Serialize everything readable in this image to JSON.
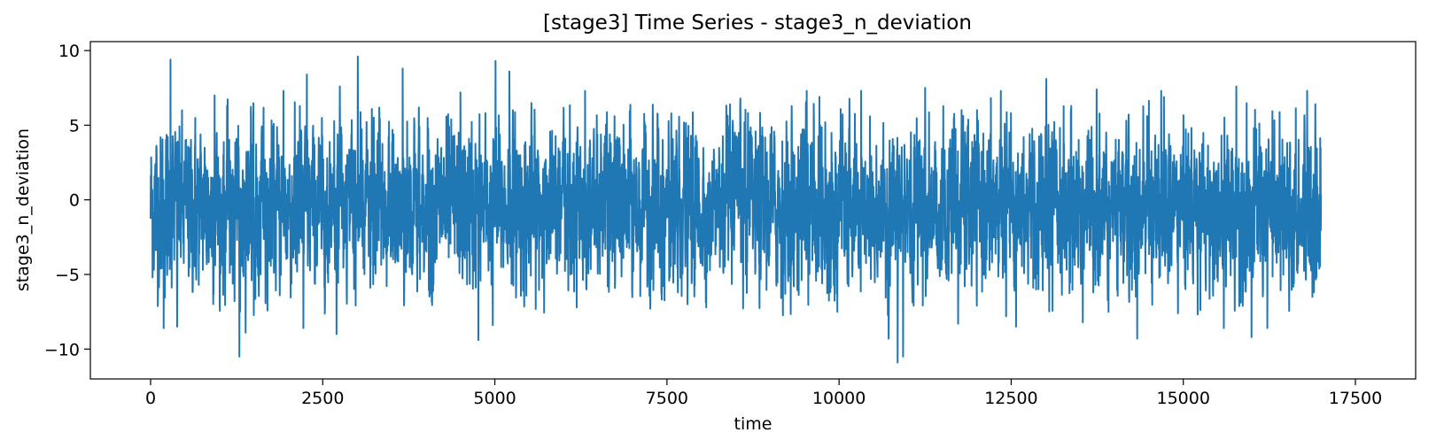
{
  "chart_data": {
    "type": "line",
    "title": "[stage3] Time Series - stage3_n_deviation",
    "xlabel": "time",
    "ylabel": "stage3_n_deviation",
    "xlim": [
      -875,
      18375
    ],
    "ylim": [
      -12,
      10.6
    ],
    "x_ticks": [
      0,
      2500,
      5000,
      7500,
      10000,
      12500,
      15000,
      17500
    ],
    "x_tick_labels": [
      "0",
      "2500",
      "5000",
      "7500",
      "10000",
      "12500",
      "15000",
      "17500"
    ],
    "y_ticks": [
      -10,
      -5,
      0,
      5,
      10
    ],
    "y_tick_labels": [
      "−10",
      "−5",
      "0",
      "5",
      "10"
    ],
    "grid": false,
    "legend": "none",
    "series": [
      {
        "color": "#1f77b4",
        "x_start": 0,
        "x_end": 17000,
        "n_points": 17000,
        "typical_range": [
          -5.0,
          4.0
        ],
        "peaks": [
          {
            "x": 290,
            "y": 9.4
          },
          {
            "x": 3010,
            "y": 9.6
          },
          {
            "x": 3660,
            "y": 8.8
          },
          {
            "x": 5010,
            "y": 9.3
          },
          {
            "x": 5210,
            "y": 8.6
          },
          {
            "x": 2270,
            "y": 8.4
          },
          {
            "x": 2750,
            "y": 7.6
          },
          {
            "x": 1930,
            "y": 7.3
          },
          {
            "x": 13010,
            "y": 8.1
          },
          {
            "x": 15770,
            "y": 7.6
          },
          {
            "x": 16800,
            "y": 7.3
          },
          {
            "x": 13740,
            "y": 7.4
          },
          {
            "x": 9530,
            "y": 7.3
          },
          {
            "x": 10320,
            "y": 7.3
          },
          {
            "x": 6310,
            "y": 7.3
          },
          {
            "x": 11250,
            "y": 7.5
          },
          {
            "x": 12350,
            "y": 7.3
          },
          {
            "x": 930,
            "y": 7.0
          },
          {
            "x": 4500,
            "y": 7.2
          },
          {
            "x": 14680,
            "y": 7.3
          }
        ],
        "troughs": [
          {
            "x": 10850,
            "y": -10.9
          },
          {
            "x": 1290,
            "y": -10.5
          },
          {
            "x": 10930,
            "y": -10.5
          },
          {
            "x": 4760,
            "y": -9.4
          },
          {
            "x": 10720,
            "y": -9.3
          },
          {
            "x": 14330,
            "y": -9.3
          },
          {
            "x": 15990,
            "y": -9.2
          },
          {
            "x": 1380,
            "y": -8.9
          },
          {
            "x": 2700,
            "y": -9.0
          },
          {
            "x": 2220,
            "y": -8.6
          },
          {
            "x": 190,
            "y": -8.6
          },
          {
            "x": 385,
            "y": -8.5
          },
          {
            "x": 4970,
            "y": -8.4
          },
          {
            "x": 15590,
            "y": -8.6
          },
          {
            "x": 12570,
            "y": -8.5
          },
          {
            "x": 16220,
            "y": -8.6
          },
          {
            "x": 11730,
            "y": -8.3
          },
          {
            "x": 13540,
            "y": -8.2
          }
        ]
      }
    ]
  }
}
